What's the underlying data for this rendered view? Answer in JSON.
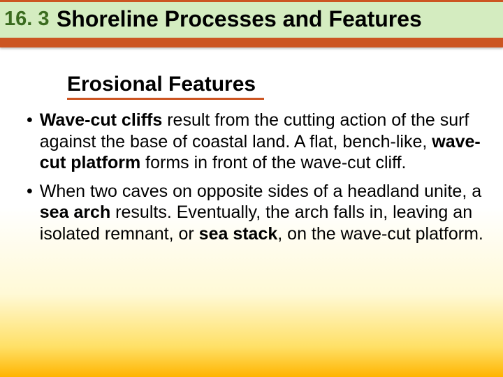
{
  "header": {
    "section_number": "16. 3",
    "section_title": "Shoreline Processes and Features",
    "number_color": "#3a6b1f",
    "band_bg": "#d4ecc0",
    "underline_color": "#cc5522"
  },
  "subheading": {
    "text": "Erosional Features",
    "underline_color": "#cc5522"
  },
  "bullets": [
    {
      "runs": [
        {
          "text": "Wave-cut cliffs",
          "bold": true
        },
        {
          "text": " result from the cutting action of the surf against the base of coastal land. A flat, bench-like, ",
          "bold": false
        },
        {
          "text": "wave-cut platform",
          "bold": true
        },
        {
          "text": " forms in front of the wave-cut cliff.",
          "bold": false
        }
      ]
    },
    {
      "runs": [
        {
          "text": "When two caves on opposite sides of a headland unite, a ",
          "bold": false
        },
        {
          "text": "sea arch",
          "bold": true
        },
        {
          "text": " results. Eventually, the arch falls in, leaving an isolated remnant, or ",
          "bold": false
        },
        {
          "text": "sea stack",
          "bold": true
        },
        {
          "text": ", on the wave-cut platform.",
          "bold": false
        }
      ]
    }
  ],
  "background_gradient": [
    "#ffffff",
    "#fff9d6",
    "#ffe066",
    "#ffb400"
  ]
}
